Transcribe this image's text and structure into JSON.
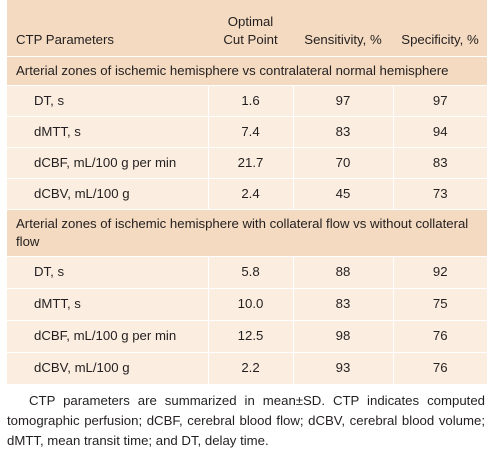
{
  "table": {
    "headers": {
      "param": "CTP Parameters",
      "cutpoint_line1": "Optimal",
      "cutpoint_line2": "Cut Point",
      "sensitivity": "Sensitivity, %",
      "specificity": "Specificity, %"
    },
    "sections": [
      {
        "title": "Arterial zones of ischemic hemisphere vs contralateral normal hemisphere",
        "rows": [
          {
            "param": "DT, s",
            "cutpoint": "1.6",
            "sensitivity": "97",
            "specificity": "97"
          },
          {
            "param": "dMTT, s",
            "cutpoint": "7.4",
            "sensitivity": "83",
            "specificity": "94"
          },
          {
            "param": "dCBF, mL/100 g per min",
            "cutpoint": "21.7",
            "sensitivity": "70",
            "specificity": "83"
          },
          {
            "param": "dCBV, mL/100 g",
            "cutpoint": "2.4",
            "sensitivity": "45",
            "specificity": "73"
          }
        ]
      },
      {
        "title": "Arterial zones of ischemic hemisphere with collateral flow vs without collateral flow",
        "rows": [
          {
            "param": "DT, s",
            "cutpoint": "5.8",
            "sensitivity": "88",
            "specificity": "92"
          },
          {
            "param": "dMTT, s",
            "cutpoint": "10.0",
            "sensitivity": "83",
            "specificity": "75"
          },
          {
            "param": "dCBF, mL/100 g per min",
            "cutpoint": "12.5",
            "sensitivity": "98",
            "specificity": "76"
          },
          {
            "param": "dCBV, mL/100 g",
            "cutpoint": "2.2",
            "sensitivity": "93",
            "specificity": "76"
          }
        ]
      }
    ]
  },
  "footnote": "CTP parameters are summarized in mean±SD. CTP indicates computed tomographic perfusion; dCBF, cerebral blood flow; dCBV, cerebral blood volume; dMTT, mean transit time; and DT, delay time.",
  "colors": {
    "header_bg": "#f3dac0",
    "row_bg": "#fbeee0",
    "text": "#231f20"
  }
}
